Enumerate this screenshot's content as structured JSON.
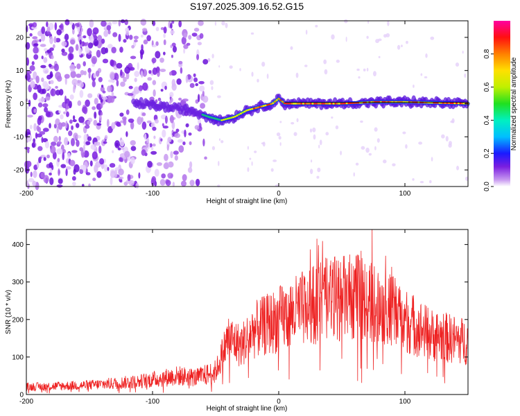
{
  "title": "S197.2025.309.16.52.G15",
  "colors": {
    "snr_line": "#ee2222",
    "axis": "#000000",
    "background": "#ffffff"
  },
  "chart_data": [
    {
      "type": "heatmap",
      "name": "spectrogram",
      "xlabel": "Height of straight line (km)",
      "ylabel": "Frequency (Hz)",
      "xlim": [
        -200,
        150
      ],
      "ylim": [
        -25,
        25
      ],
      "xticks": [
        -200,
        -100,
        0,
        100
      ],
      "xtick_labels": [
        "-200",
        "-100",
        "0",
        "100"
      ],
      "yticks": [
        20,
        10,
        0,
        -10,
        -20
      ],
      "ytick_labels": [
        "20",
        "10",
        "0",
        "-10",
        "-20"
      ],
      "ridge": [
        {
          "x": -110,
          "y": 0
        },
        {
          "x": -90,
          "y": -1
        },
        {
          "x": -70,
          "y": -2
        },
        {
          "x": -55,
          "y": -4
        },
        {
          "x": -45,
          "y": -5
        },
        {
          "x": -35,
          "y": -4
        },
        {
          "x": -25,
          "y": -2
        },
        {
          "x": -15,
          "y": -1
        },
        {
          "x": -5,
          "y": 0
        },
        {
          "x": 0,
          "y": 1.5
        },
        {
          "x": 5,
          "y": 0
        },
        {
          "x": 30,
          "y": 0
        },
        {
          "x": 50,
          "y": 0
        },
        {
          "x": 75,
          "y": 0.5
        },
        {
          "x": 100,
          "y": 0.5
        },
        {
          "x": 150,
          "y": 0
        }
      ],
      "colorbar": {
        "label": "Normalized spectral amplitude",
        "range": [
          0.0,
          1.0
        ],
        "ticks": [
          0.0,
          0.2,
          0.4,
          0.6,
          0.8
        ],
        "tick_labels": [
          "0.0",
          "0.2",
          "0.4",
          "0.6",
          "0.8"
        ]
      }
    },
    {
      "type": "line",
      "name": "snr",
      "xlabel": "Height of straight line (km)",
      "ylabel": "SNR (10 * v/v)",
      "xlim": [
        -200,
        150
      ],
      "ylim": [
        0,
        440
      ],
      "xticks": [
        -200,
        -100,
        0,
        100
      ],
      "xtick_labels": [
        "-200",
        "-100",
        "0",
        "100"
      ],
      "yticks": [
        0,
        100,
        200,
        300,
        400
      ],
      "ytick_labels": [
        "0",
        "100",
        "200",
        "300",
        "400"
      ],
      "envelope": [
        {
          "x": -200,
          "y": 20
        },
        {
          "x": -150,
          "y": 25
        },
        {
          "x": -110,
          "y": 35
        },
        {
          "x": -80,
          "y": 50
        },
        {
          "x": -65,
          "y": 45
        },
        {
          "x": -50,
          "y": 60
        },
        {
          "x": -40,
          "y": 150
        },
        {
          "x": -30,
          "y": 130
        },
        {
          "x": -20,
          "y": 170
        },
        {
          "x": 0,
          "y": 200
        },
        {
          "x": 20,
          "y": 230
        },
        {
          "x": 40,
          "y": 255
        },
        {
          "x": 60,
          "y": 260
        },
        {
          "x": 80,
          "y": 240
        },
        {
          "x": 100,
          "y": 200
        },
        {
          "x": 120,
          "y": 160
        },
        {
          "x": 150,
          "y": 140
        }
      ]
    }
  ]
}
